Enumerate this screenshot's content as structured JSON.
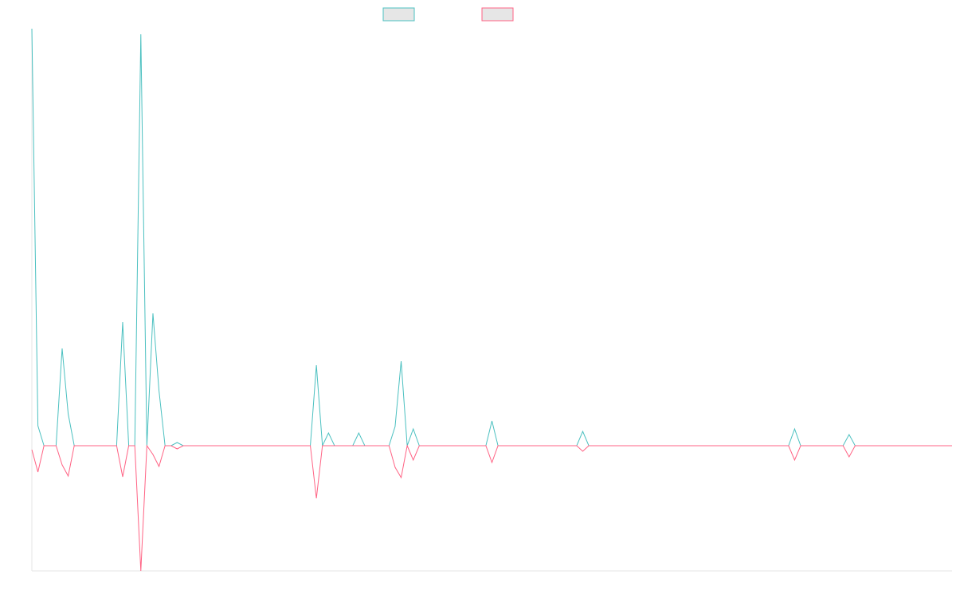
{
  "chart_data": {
    "type": "line",
    "categories": [
      null,
      null,
      null,
      null,
      null,
      null,
      null,
      null,
      null,
      null,
      null,
      null,
      null,
      null,
      null,
      null,
      null,
      null,
      null,
      null,
      null,
      null,
      null,
      null,
      null,
      null,
      null,
      null,
      null,
      null,
      null,
      null,
      null,
      null,
      null,
      null,
      null,
      null,
      null,
      null,
      null,
      null,
      null,
      null,
      null,
      null,
      null,
      null,
      null,
      null,
      null,
      null,
      null,
      null,
      null,
      null,
      null,
      null,
      null,
      null,
      null,
      null,
      null,
      null,
      null,
      null,
      null,
      null,
      null,
      null,
      null,
      null,
      null,
      null,
      null,
      null,
      null,
      null,
      null,
      null,
      null,
      null,
      null,
      null,
      null,
      null,
      null,
      null,
      null,
      null,
      null,
      null,
      null,
      null,
      null,
      null,
      null,
      null,
      null,
      null,
      null,
      null,
      null,
      null,
      null,
      null,
      null,
      null,
      null,
      null,
      null,
      null,
      null,
      null,
      null,
      null,
      null,
      null,
      null,
      null,
      null,
      null,
      null,
      null,
      null,
      null,
      null,
      null,
      null,
      null,
      null,
      null,
      null,
      null,
      null,
      null,
      null,
      null,
      null,
      null,
      null,
      null,
      null,
      null,
      null,
      null,
      null,
      null,
      null,
      null,
      null,
      null,
      null
    ],
    "series": [
      {
        "color": "#4bc0c0",
        "values": [
          523,
          25,
          0,
          0,
          0,
          122,
          40,
          0,
          0,
          0,
          0,
          0,
          0,
          0,
          0,
          155,
          0,
          0,
          516,
          0,
          166,
          69,
          0,
          0,
          4,
          0,
          0,
          0,
          0,
          0,
          0,
          0,
          0,
          0,
          0,
          0,
          0,
          0,
          0,
          0,
          0,
          0,
          0,
          0,
          0,
          0,
          0,
          101,
          0,
          16,
          0,
          0,
          0,
          0,
          16,
          0,
          0,
          0,
          0,
          0,
          24,
          106,
          0,
          21,
          0,
          0,
          0,
          0,
          0,
          0,
          0,
          0,
          0,
          0,
          0,
          0,
          31,
          0,
          0,
          0,
          0,
          0,
          0,
          0,
          0,
          0,
          0,
          0,
          0,
          0,
          0,
          18,
          0,
          0,
          0,
          0,
          0,
          0,
          0,
          0,
          0,
          0,
          0,
          0,
          0,
          0,
          0,
          0,
          0,
          0,
          0,
          0,
          0,
          0,
          0,
          0,
          0,
          0,
          0,
          0,
          0,
          0,
          0,
          0,
          0,
          0,
          21,
          0,
          0,
          0,
          0,
          0,
          0,
          0,
          0,
          14,
          0,
          0,
          0,
          0,
          0,
          0,
          0,
          0,
          0,
          0,
          0,
          0,
          0,
          0,
          0,
          0,
          0
        ]
      },
      {
        "color": "#ff6384",
        "values": [
          -5,
          -33,
          0,
          0,
          0,
          -24,
          -38,
          0,
          0,
          0,
          0,
          0,
          0,
          0,
          0,
          -39,
          0,
          0,
          -157,
          0,
          -11,
          -26,
          0,
          0,
          -4,
          0,
          0,
          0,
          0,
          0,
          0,
          0,
          0,
          0,
          0,
          0,
          0,
          0,
          0,
          0,
          0,
          0,
          0,
          0,
          0,
          0,
          0,
          -66,
          0,
          0,
          0,
          0,
          0,
          0,
          0,
          0,
          0,
          0,
          0,
          0,
          -27,
          -40,
          0,
          -18,
          0,
          0,
          0,
          0,
          0,
          0,
          0,
          0,
          0,
          0,
          0,
          0,
          -21,
          0,
          0,
          0,
          0,
          0,
          0,
          0,
          0,
          0,
          0,
          0,
          0,
          0,
          0,
          -7,
          0,
          0,
          0,
          0,
          0,
          0,
          0,
          0,
          0,
          0,
          0,
          0,
          0,
          0,
          0,
          0,
          0,
          0,
          0,
          0,
          0,
          0,
          0,
          0,
          0,
          0,
          0,
          0,
          0,
          0,
          0,
          0,
          0,
          0,
          -18,
          0,
          0,
          0,
          0,
          0,
          0,
          0,
          0,
          -14,
          0,
          0,
          0,
          0,
          0,
          0,
          0,
          0,
          0,
          0,
          0,
          0,
          0,
          0,
          0,
          0,
          0
        ]
      }
    ],
    "ylim": [
      -157,
      523
    ]
  }
}
